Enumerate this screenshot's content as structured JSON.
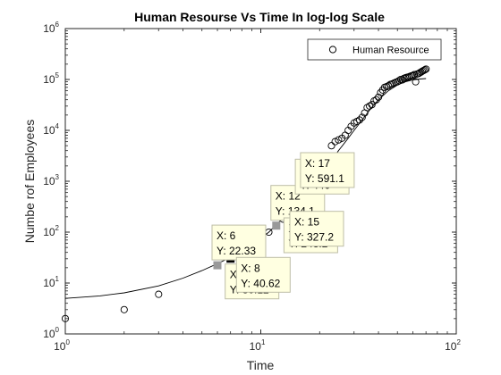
{
  "chart_data": {
    "type": "scatter",
    "title": "Human Resourse Vs Time In log-log Scale",
    "xlabel": "Time",
    "ylabel": "Numbe rof Employees",
    "xscale": "log",
    "yscale": "log",
    "xlim": [
      1,
      100
    ],
    "ylim": [
      1,
      1000000
    ],
    "x_ticks": [
      {
        "base": "10",
        "exp": "0",
        "value": 1
      },
      {
        "base": "10",
        "exp": "1",
        "value": 10
      },
      {
        "base": "10",
        "exp": "2",
        "value": 100
      }
    ],
    "y_ticks": [
      {
        "base": "10",
        "exp": "0",
        "value": 1
      },
      {
        "base": "10",
        "exp": "1",
        "value": 10
      },
      {
        "base": "10",
        "exp": "2",
        "value": 100
      },
      {
        "base": "10",
        "exp": "3",
        "value": 1000
      },
      {
        "base": "10",
        "exp": "4",
        "value": 10000
      },
      {
        "base": "10",
        "exp": "5",
        "value": 100000
      },
      {
        "base": "10",
        "exp": "6",
        "value": 1000000
      }
    ],
    "grid": false,
    "legend": {
      "position": "top-right",
      "entries": [
        "Human Resource"
      ]
    },
    "series": [
      {
        "name": "Human Resource",
        "marker": "open-circle",
        "x": [
          1,
          2,
          3,
          6,
          7,
          8,
          9,
          10,
          11,
          12,
          13,
          14,
          15,
          16,
          17,
          18,
          19,
          20,
          21,
          22,
          23,
          24,
          25,
          26,
          27,
          28,
          29,
          30,
          31,
          32,
          33,
          34,
          35,
          36,
          37,
          38,
          39,
          40,
          41,
          42,
          43,
          44,
          45,
          46,
          47,
          48,
          49,
          50,
          51,
          52,
          53,
          54,
          55,
          56,
          57,
          58,
          59,
          60,
          61,
          62,
          63,
          64,
          65,
          66,
          67,
          68,
          69,
          70
        ],
        "y": [
          2,
          3,
          6,
          22.33,
          30.12,
          40.62,
          55,
          75,
          100,
          134.1,
          180,
          243.2,
          327.2,
          440,
          591.1,
          800,
          1100,
          1500,
          2100,
          2900,
          5000,
          6000,
          6500,
          7000,
          8000,
          10000,
          12000,
          14000,
          15000,
          16000,
          18000,
          22000,
          28000,
          30000,
          32000,
          38000,
          40000,
          45000,
          55000,
          62000,
          70000,
          72000,
          75000,
          80000,
          82000,
          85000,
          88000,
          90000,
          95000,
          100000,
          98000,
          105000,
          108000,
          110000,
          112000,
          115000,
          118000,
          120000,
          125000,
          90000,
          128000,
          130000,
          135000,
          140000,
          145000,
          150000,
          155000,
          160000
        ]
      },
      {
        "name": "",
        "marker": "line",
        "x": [
          1,
          1.5,
          2,
          3,
          4,
          5,
          6,
          7,
          8,
          9,
          10,
          11,
          12,
          14,
          16,
          18,
          20,
          22,
          25,
          28,
          30,
          33,
          36,
          40,
          45,
          50,
          55,
          60,
          65,
          70
        ],
        "y": [
          5,
          5.6,
          6.4,
          8.8,
          12.5,
          17.5,
          24,
          32,
          42,
          55,
          75,
          100,
          140,
          250,
          430,
          720,
          1250,
          2000,
          4000,
          7000,
          10000,
          16000,
          25000,
          40000,
          60000,
          78000,
          90000,
          98000,
          102000,
          104000
        ]
      }
    ],
    "highlighted_points": [
      {
        "x": 6,
        "y": 22.33,
        "color": "#999999"
      },
      {
        "x": 7,
        "y": 30.12,
        "color": "#000000"
      },
      {
        "x": 8,
        "y": 40.62,
        "color": "#999999"
      },
      {
        "x": 12,
        "y": 134.1,
        "color": "#999999"
      },
      {
        "x": 14,
        "y": 243.2,
        "color": "#000000"
      },
      {
        "x": 15,
        "y": 327.2,
        "color": "#000000"
      },
      {
        "x": 16,
        "y": 440,
        "color": "#000000"
      },
      {
        "x": 17,
        "y": 591.1,
        "color": "#000000"
      }
    ],
    "datatips": [
      {
        "x_text": "X: 6",
        "y_text": "Y: 22.33",
        "x": 6,
        "y": 22.33,
        "placement": "above"
      },
      {
        "x_text": "X: 7",
        "y_text": "Y: 30.12",
        "x": 7,
        "y": 30.12,
        "placement": "below"
      },
      {
        "x_text": "X: 8",
        "y_text": "Y: 40.62",
        "x": 8,
        "y": 40.62,
        "placement": "below"
      },
      {
        "x_text": "X: 12",
        "y_text": "Y: 134.1",
        "x": 12,
        "y": 134.1,
        "placement": "above"
      },
      {
        "x_text": "X: 14",
        "y_text": "Y: 243.2",
        "x": 14,
        "y": 243.2,
        "placement": "below"
      },
      {
        "x_text": "X: 15",
        "y_text": "Y: 327.2",
        "x": 15,
        "y": 327.2,
        "placement": "below"
      },
      {
        "x_text": "X: 16",
        "y_text": "Y: 440",
        "x": 16,
        "y": 440,
        "placement": "above"
      },
      {
        "x_text": "X: 17",
        "y_text": "Y: 591.1",
        "x": 17,
        "y": 591.1,
        "placement": "above"
      }
    ],
    "colors": {
      "marker": "#000000",
      "line": "#000000",
      "datatip_fill": "#ffffe1",
      "datatip_border": "#bdbda6",
      "axes": "#262626"
    }
  }
}
